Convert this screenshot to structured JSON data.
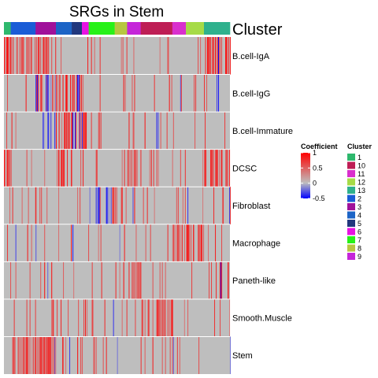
{
  "chart_data": {
    "type": "heatmap",
    "title": "SRGs in Stem",
    "annotation_title": "Cluster",
    "rows": [
      "B.cell-IgA",
      "B.cell-IgG",
      "B.cell-Immature",
      "DCSC",
      "Fibroblast",
      "Macrophage",
      "Paneth-like",
      "Smooth.Muscle",
      "Stem"
    ],
    "clusters": [
      {
        "name": "1",
        "color": "#2EB86D"
      },
      {
        "name": "10",
        "color": "#BE1E55"
      },
      {
        "name": "11",
        "color": "#D92FCD"
      },
      {
        "name": "12",
        "color": "#A6DB47"
      },
      {
        "name": "13",
        "color": "#2FB18D"
      },
      {
        "name": "2",
        "color": "#1A5CD6"
      },
      {
        "name": "3",
        "color": "#A0119A"
      },
      {
        "name": "4",
        "color": "#1C64C6"
      },
      {
        "name": "5",
        "color": "#21377D"
      },
      {
        "name": "6",
        "color": "#E812E2"
      },
      {
        "name": "7",
        "color": "#27F118"
      },
      {
        "name": "8",
        "color": "#B7C641"
      },
      {
        "name": "9",
        "color": "#C526D9"
      }
    ],
    "column_blocks": [
      {
        "cluster": "1",
        "fraction": 0.03
      },
      {
        "cluster": "2",
        "fraction": 0.11
      },
      {
        "cluster": "3",
        "fraction": 0.09
      },
      {
        "cluster": "4",
        "fraction": 0.07
      },
      {
        "cluster": "5",
        "fraction": 0.045
      },
      {
        "cluster": "6",
        "fraction": 0.03
      },
      {
        "cluster": "7",
        "fraction": 0.115
      },
      {
        "cluster": "8",
        "fraction": 0.055
      },
      {
        "cluster": "9",
        "fraction": 0.06
      },
      {
        "cluster": "10",
        "fraction": 0.14
      },
      {
        "cluster": "11",
        "fraction": 0.06
      },
      {
        "cluster": "12",
        "fraction": 0.08
      },
      {
        "cluster": "13",
        "fraction": 0.085
      }
    ],
    "color_scale": {
      "title": "Coefficient",
      "breaks": [
        1,
        0.5,
        0,
        -0.5
      ],
      "range": [
        -0.5,
        1
      ],
      "colors": {
        "low": "#0000FF",
        "mid": "#BEBEBE",
        "high": "#FF0000"
      }
    },
    "row_pattern": {
      "B.cell-IgA": {
        "hot_blocks": [
          "1",
          "2",
          "3",
          "13"
        ],
        "cold_blocks": []
      },
      "B.cell-IgG": {
        "hot_blocks": [
          "4",
          "5"
        ],
        "cold_blocks": [
          "3",
          "5"
        ]
      },
      "B.cell-Immature": {
        "hot_blocks": [
          "4",
          "5",
          "6"
        ],
        "cold_blocks": [
          "3",
          "5"
        ]
      },
      "DCSC": {
        "hot_blocks": [
          "1",
          "4",
          "9",
          "13"
        ],
        "cold_blocks": []
      },
      "Fibroblast": {
        "hot_blocks": [],
        "cold_blocks": [
          "7"
        ]
      },
      "Macrophage": {
        "hot_blocks": [
          "11",
          "12"
        ],
        "cold_blocks": []
      },
      "Paneth-like": {
        "hot_blocks": [
          "9"
        ],
        "cold_blocks": []
      },
      "Smooth.Muscle": {
        "hot_blocks": [
          "10"
        ],
        "cold_blocks": []
      },
      "Stem": {
        "hot_blocks": [
          "2",
          "3"
        ],
        "cold_blocks": []
      }
    }
  }
}
